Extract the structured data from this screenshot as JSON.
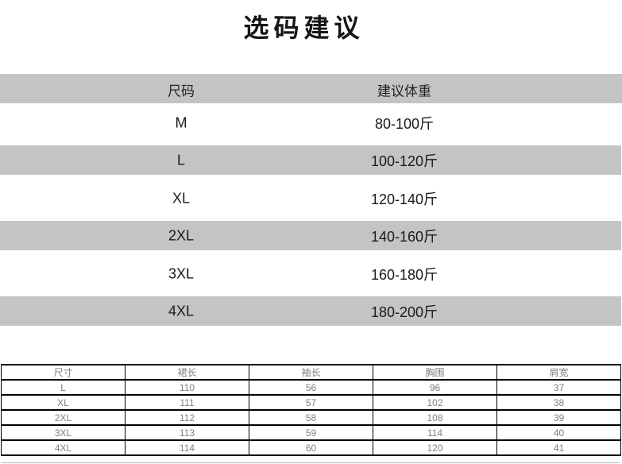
{
  "page": {
    "title": "选码建议"
  },
  "size_weight_table": {
    "headers": {
      "size": "尺码",
      "weight": "建议体重"
    },
    "rows": [
      {
        "size": "M",
        "weight": "80-100斤"
      },
      {
        "size": "L",
        "weight": "100-120斤"
      },
      {
        "size": "XL",
        "weight": "120-140斤"
      },
      {
        "size": "2XL",
        "weight": "140-160斤"
      },
      {
        "size": "3XL",
        "weight": "160-180斤"
      },
      {
        "size": "4XL",
        "weight": "180-200斤"
      }
    ]
  },
  "measurements_table": {
    "headers": [
      "尺寸",
      "裙长",
      "袖长",
      "胸围",
      "肩宽"
    ],
    "rows": [
      [
        "L",
        "110",
        "56",
        "96",
        "37"
      ],
      [
        "XL",
        "111",
        "57",
        "102",
        "38"
      ],
      [
        "2XL",
        "112",
        "58",
        "108",
        "39"
      ],
      [
        "3XL",
        "113",
        "59",
        "114",
        "40"
      ],
      [
        "4XL",
        "114",
        "60",
        "120",
        "41"
      ]
    ]
  },
  "colors": {
    "stripe_gray": "#c4c4c4",
    "title_text": "#161616",
    "primary_text": "#1a1a1a",
    "measure_text": "#808080",
    "table_border": "#000000",
    "partial_line": "#b3b3b3"
  }
}
